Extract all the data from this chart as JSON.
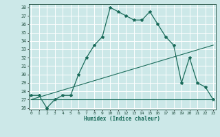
{
  "xlabel": "Humidex (Indice chaleur)",
  "bg_color": "#cce8e8",
  "grid_color": "#add8d8",
  "line_color": "#1a6b5a",
  "line1_x": [
    0,
    1,
    2,
    3,
    4,
    5,
    6,
    7,
    8,
    9,
    10,
    11,
    12,
    13,
    14,
    15,
    16,
    17,
    18,
    19,
    20,
    21,
    22,
    23
  ],
  "line1_y": [
    27.5,
    27.5,
    26.0,
    27.0,
    27.5,
    27.5,
    30.0,
    32.0,
    33.5,
    34.5,
    38.0,
    37.5,
    37.0,
    36.5,
    36.5,
    37.5,
    36.0,
    34.5,
    33.5,
    29.0,
    32.0,
    29.0,
    28.5,
    27.0
  ],
  "line2_x": [
    0,
    23
  ],
  "line2_y": [
    27.0,
    33.5
  ],
  "line3_x": [
    0,
    19,
    23
  ],
  "line3_y": [
    27.0,
    27.0,
    27.0
  ],
  "ylim": [
    25.8,
    38.4
  ],
  "xlim": [
    -0.3,
    23.3
  ],
  "yticks": [
    26,
    27,
    28,
    29,
    30,
    31,
    32,
    33,
    34,
    35,
    36,
    37,
    38
  ],
  "xticks": [
    0,
    1,
    2,
    3,
    4,
    5,
    6,
    7,
    8,
    9,
    10,
    11,
    12,
    13,
    14,
    15,
    16,
    17,
    18,
    19,
    20,
    21,
    22,
    23
  ]
}
